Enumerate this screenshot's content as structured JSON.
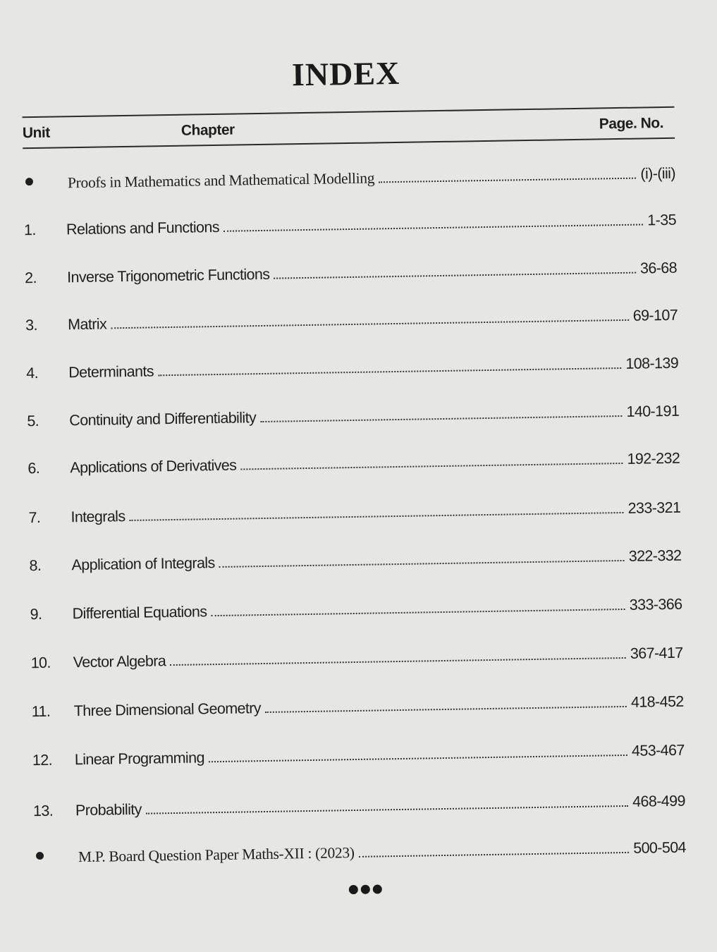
{
  "title": "INDEX",
  "header": {
    "unit": "Unit",
    "chapter": "Chapter",
    "page_no": "Page. No."
  },
  "entries": [
    {
      "unit": "",
      "bullet": true,
      "chapter": "Proofs in Mathematics and Mathematical Modelling",
      "pages": "(i)-(iii)"
    },
    {
      "unit": "1.",
      "chapter": "Relations and Functions",
      "pages": "1-35"
    },
    {
      "unit": "2.",
      "chapter": "Inverse Trigonometric Functions",
      "pages": "36-68"
    },
    {
      "unit": "3.",
      "chapter": "Matrix",
      "pages": "69-107"
    },
    {
      "unit": "4.",
      "chapter": "Determinants",
      "pages": "108-139"
    },
    {
      "unit": "5.",
      "chapter": "Continuity and Differentiability",
      "pages": "140-191"
    },
    {
      "unit": "6.",
      "chapter": "Applications of Derivatives",
      "pages": "192-232"
    },
    {
      "unit": "7.",
      "chapter": "Integrals",
      "pages": "233-321"
    },
    {
      "unit": "8.",
      "chapter": "Application of Integrals",
      "pages": "322-332"
    },
    {
      "unit": "9.",
      "chapter": "Differential Equations",
      "pages": "333-366"
    },
    {
      "unit": "10.",
      "chapter": "Vector Algebra",
      "pages": "367-417"
    },
    {
      "unit": "11.",
      "chapter": "Three Dimensional Geometry",
      "pages": "418-452"
    },
    {
      "unit": "12.",
      "chapter": "Linear Programming",
      "pages": "453-467"
    },
    {
      "unit": "13.",
      "chapter": "Probability",
      "pages": "468-499"
    },
    {
      "unit": "",
      "bullet": true,
      "chapter": "M.P. Board Question Paper Maths-XII : (2023)",
      "pages": "500-504"
    }
  ]
}
